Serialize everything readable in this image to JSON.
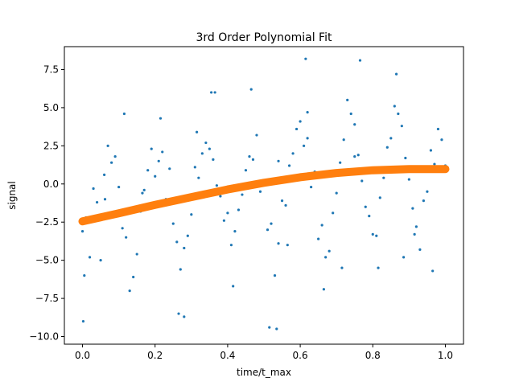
{
  "chart_data": {
    "type": "scatter",
    "title": "3rd Order Polynomial Fit",
    "xlabel": "time/t_max",
    "ylabel": "signal",
    "xlim": [
      -0.05,
      1.05
    ],
    "ylim": [
      -10.5,
      9.0
    ],
    "xticks": [
      0.0,
      0.2,
      0.4,
      0.6,
      0.8,
      1.0
    ],
    "xtick_labels": [
      "0.0",
      "0.2",
      "0.4",
      "0.6",
      "0.8",
      "1.0"
    ],
    "yticks": [
      -10.0,
      -7.5,
      -5.0,
      -2.5,
      0.0,
      2.5,
      5.0,
      7.5
    ],
    "ytick_labels": [
      "−10.0",
      "−7.5",
      "−5.0",
      "−2.5",
      "0.0",
      "2.5",
      "5.0",
      "7.5"
    ],
    "grid": false,
    "legend": "none",
    "colors": {
      "data": "#1f77b4",
      "fit": "#ff7f0e"
    },
    "series": [
      {
        "kind": "scatter",
        "x": [
          0.0,
          0.02,
          0.04,
          0.06,
          0.08,
          0.1,
          0.12,
          0.14,
          0.16,
          0.18,
          0.2,
          0.22,
          0.24,
          0.26,
          0.28,
          0.3,
          0.32,
          0.34,
          0.36,
          0.38,
          0.4,
          0.42,
          0.44,
          0.46,
          0.48,
          0.5,
          0.52,
          0.54,
          0.56,
          0.58,
          0.6,
          0.62,
          0.64,
          0.66,
          0.68,
          0.7,
          0.72,
          0.74,
          0.76,
          0.78,
          0.8,
          0.82,
          0.84,
          0.86,
          0.88,
          0.9,
          0.92,
          0.94,
          0.96,
          0.98,
          1.0,
          0.01,
          0.03,
          0.05,
          0.07,
          0.09,
          0.11,
          0.13,
          0.15,
          0.17,
          0.19,
          0.21,
          0.23,
          0.25,
          0.27,
          0.29,
          0.31,
          0.33,
          0.35,
          0.37,
          0.39,
          0.41,
          0.43,
          0.45,
          0.47,
          0.49,
          0.51,
          0.53,
          0.55,
          0.57,
          0.59,
          0.61,
          0.63,
          0.65,
          0.67,
          0.69,
          0.71,
          0.73,
          0.75,
          0.77,
          0.79,
          0.81,
          0.83,
          0.85,
          0.87,
          0.89,
          0.91,
          0.93,
          0.95,
          0.97,
          0.99,
          0.005,
          0.062,
          0.115,
          0.165,
          0.215,
          0.265,
          0.315,
          0.365,
          0.415,
          0.465,
          0.515,
          0.565,
          0.615,
          0.665,
          0.715,
          0.765,
          0.815,
          0.865,
          0.915,
          0.965,
          0.355,
          0.54,
          0.62,
          0.75,
          0.885,
          0.002,
          0.28,
          0.535
        ],
        "y": [
          -3.1,
          -4.8,
          -1.2,
          0.6,
          1.4,
          -0.2,
          -3.5,
          -6.1,
          -1.8,
          0.9,
          0.5,
          2.1,
          1.0,
          -3.8,
          -4.2,
          -2.0,
          0.4,
          2.7,
          1.6,
          -0.8,
          -1.9,
          -3.1,
          -0.7,
          1.8,
          3.2,
          0.1,
          -2.6,
          -3.9,
          -1.4,
          2.0,
          4.1,
          3.0,
          0.8,
          -2.7,
          -4.4,
          -0.6,
          2.9,
          4.6,
          1.9,
          -1.5,
          -3.3,
          -0.9,
          2.4,
          5.1,
          3.8,
          0.3,
          -2.8,
          -1.1,
          2.2,
          3.6,
          1.2,
          -2.2,
          -0.3,
          -5.0,
          2.5,
          1.8,
          -2.9,
          -7.0,
          -4.6,
          -0.4,
          2.3,
          1.5,
          -1.0,
          -2.6,
          -5.6,
          -3.4,
          1.1,
          2.0,
          2.3,
          -0.1,
          -2.4,
          -4.0,
          -1.7,
          0.9,
          1.6,
          -0.5,
          -3.0,
          -6.0,
          -1.1,
          1.2,
          3.6,
          2.5,
          -0.2,
          -3.6,
          -4.8,
          -1.9,
          1.4,
          5.5,
          3.9,
          0.2,
          -2.1,
          -3.4,
          0.4,
          3.0,
          4.6,
          1.7,
          -1.6,
          -4.3,
          -0.5,
          1.3,
          2.9,
          -6.0,
          -1.0,
          4.6,
          -0.6,
          4.3,
          -8.5,
          3.4,
          6.0,
          -6.7,
          6.2,
          -9.4,
          -4.0,
          8.2,
          -6.9,
          -5.5,
          8.1,
          -5.5,
          7.2,
          -3.3,
          -5.7,
          6.0,
          1.5,
          4.7,
          1.8,
          -4.8,
          -9.0,
          -8.7,
          -9.5
        ]
      },
      {
        "kind": "fit-line",
        "x": [
          0.0,
          0.1,
          0.2,
          0.3,
          0.4,
          0.5,
          0.6,
          0.7,
          0.8,
          0.9,
          1.0
        ],
        "y": [
          -2.45,
          -1.92,
          -1.37,
          -0.86,
          -0.36,
          0.08,
          0.44,
          0.72,
          0.9,
          0.98,
          0.98
        ]
      }
    ]
  }
}
